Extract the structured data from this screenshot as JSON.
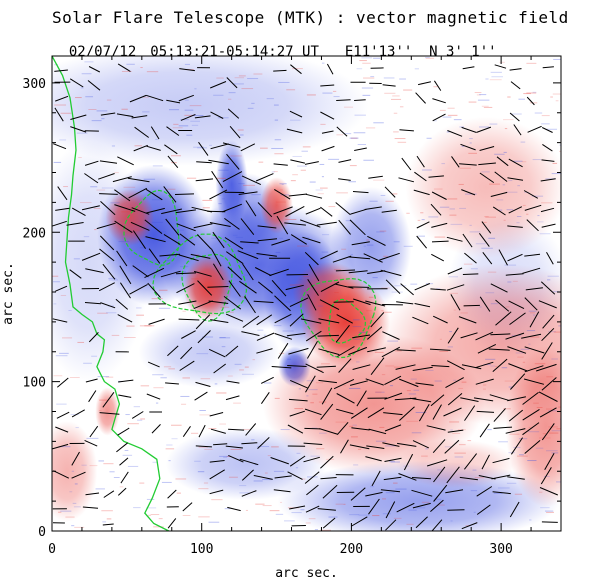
{
  "header": {
    "title": "Solar Flare Telescope (MTK) : vector magnetic field",
    "date": "02/07/12",
    "time_range": "05:13:21-05:14:27 UT",
    "position": "E11'13''  N 3' 1''"
  },
  "chart_data": {
    "type": "heatmap",
    "title": "Solar Flare Telescope (MTK) : vector magnetic field",
    "xlabel": "arc sec.",
    "ylabel": "arc sec.",
    "xlim": [
      0,
      340
    ],
    "ylim": [
      0,
      318
    ],
    "xticks": [
      0,
      100,
      200,
      300
    ],
    "yticks": [
      0,
      100,
      200,
      300
    ],
    "xticklabels": [
      "0",
      "100",
      "200",
      "300"
    ],
    "yticklabels": [
      "0",
      "100",
      "200",
      "300"
    ],
    "colors": {
      "positive": "#e8403a",
      "negative": "#4052e0",
      "contour": "#22cc33",
      "vectors": "#000000",
      "background": "#ffffff"
    },
    "negative_regions": [
      {
        "name": "upper-dark-core",
        "cx": 120,
        "cy": 232,
        "rx": 8,
        "ry": 22,
        "strength": 0.9
      },
      {
        "name": "left-spot",
        "cx": 68,
        "cy": 198,
        "rx": 28,
        "ry": 35,
        "strength": 0.95
      },
      {
        "name": "central-body",
        "cx": 138,
        "cy": 178,
        "rx": 48,
        "ry": 32,
        "strength": 0.85
      },
      {
        "name": "mid-column",
        "cx": 130,
        "cy": 210,
        "rx": 18,
        "ry": 22,
        "strength": 0.6
      },
      {
        "name": "right-column",
        "cx": 168,
        "cy": 160,
        "rx": 20,
        "ry": 30,
        "strength": 0.8
      },
      {
        "name": "upper-right-neg",
        "cx": 213,
        "cy": 190,
        "rx": 20,
        "ry": 30,
        "strength": 0.55
      },
      {
        "name": "small-neg-knot",
        "cx": 162,
        "cy": 110,
        "rx": 8,
        "ry": 10,
        "strength": 0.9
      },
      {
        "name": "lower-left-neg",
        "cx": 105,
        "cy": 120,
        "rx": 35,
        "ry": 18,
        "strength": 0.3
      },
      {
        "name": "bottom-neg",
        "cx": 245,
        "cy": 20,
        "rx": 70,
        "ry": 20,
        "strength": 0.55
      },
      {
        "name": "bottom-left-neg",
        "cx": 130,
        "cy": 45,
        "rx": 40,
        "ry": 18,
        "strength": 0.35
      },
      {
        "name": "top-diffuse-neg",
        "cx": 90,
        "cy": 285,
        "rx": 90,
        "ry": 30,
        "strength": 0.3
      },
      {
        "name": "right-diffuse-neg",
        "cx": 305,
        "cy": 165,
        "rx": 30,
        "ry": 35,
        "strength": 0.2
      },
      {
        "name": "left-diffuse-neg",
        "cx": 25,
        "cy": 180,
        "rx": 30,
        "ry": 60,
        "strength": 0.22
      }
    ],
    "positive_regions": [
      {
        "name": "main-positive-spot",
        "cx": 196,
        "cy": 140,
        "rx": 22,
        "ry": 22,
        "strength": 1.0
      },
      {
        "name": "positive-ridge",
        "cx": 185,
        "cy": 160,
        "rx": 18,
        "ry": 15,
        "strength": 0.7
      },
      {
        "name": "central-positive",
        "cx": 104,
        "cy": 163,
        "rx": 12,
        "ry": 16,
        "strength": 0.95
      },
      {
        "name": "left-positive",
        "cx": 52,
        "cy": 210,
        "rx": 12,
        "ry": 14,
        "strength": 0.8
      },
      {
        "name": "top-small-positive",
        "cx": 150,
        "cy": 218,
        "rx": 8,
        "ry": 14,
        "strength": 0.8
      },
      {
        "name": "plage-lower-center",
        "cx": 215,
        "cy": 85,
        "rx": 55,
        "ry": 35,
        "strength": 0.55
      },
      {
        "name": "plage-right",
        "cx": 300,
        "cy": 125,
        "rx": 60,
        "ry": 40,
        "strength": 0.45
      },
      {
        "name": "plage-right-edge",
        "cx": 330,
        "cy": 70,
        "rx": 20,
        "ry": 40,
        "strength": 0.55
      },
      {
        "name": "plage-upper-right",
        "cx": 290,
        "cy": 230,
        "rx": 40,
        "ry": 35,
        "strength": 0.35
      },
      {
        "name": "plage-bottom-left",
        "cx": 10,
        "cy": 40,
        "rx": 15,
        "ry": 25,
        "strength": 0.4
      },
      {
        "name": "plage-left-knot",
        "cx": 37,
        "cy": 80,
        "rx": 6,
        "ry": 12,
        "strength": 0.55
      },
      {
        "name": "plage-lower-middle",
        "cx": 270,
        "cy": 45,
        "rx": 30,
        "ry": 12,
        "strength": 0.25
      }
    ],
    "limb_contour": [
      [
        0,
        318
      ],
      [
        7,
        305
      ],
      [
        12,
        290
      ],
      [
        15,
        270
      ],
      [
        16,
        255
      ],
      [
        14,
        238
      ],
      [
        13,
        225
      ],
      [
        11,
        210
      ],
      [
        10,
        195
      ],
      [
        9,
        180
      ],
      [
        12,
        165
      ],
      [
        14,
        150
      ],
      [
        20,
        145
      ],
      [
        27,
        140
      ],
      [
        30,
        132
      ],
      [
        35,
        128
      ],
      [
        34,
        120
      ],
      [
        30,
        110
      ],
      [
        35,
        100
      ],
      [
        42,
        95
      ],
      [
        45,
        85
      ],
      [
        42,
        75
      ],
      [
        40,
        68
      ],
      [
        48,
        60
      ],
      [
        60,
        55
      ],
      [
        70,
        48
      ],
      [
        72,
        35
      ],
      [
        67,
        22
      ],
      [
        62,
        12
      ],
      [
        68,
        5
      ],
      [
        78,
        0
      ]
    ],
    "flux_contours": [
      {
        "name": "left-spot",
        "cx": 68,
        "cy": 202,
        "rx": 18,
        "ry": 24
      },
      {
        "name": "central-positive",
        "cx": 104,
        "cy": 165,
        "rx": 16,
        "ry": 22
      },
      {
        "name": "central-negative",
        "cx": 100,
        "cy": 170,
        "rx": 30,
        "ry": 26
      },
      {
        "name": "main-spot-outer",
        "cx": 192,
        "cy": 145,
        "rx": 24,
        "ry": 26
      },
      {
        "name": "main-spot-inner",
        "cx": 196,
        "cy": 140,
        "rx": 12,
        "ry": 14
      }
    ]
  }
}
